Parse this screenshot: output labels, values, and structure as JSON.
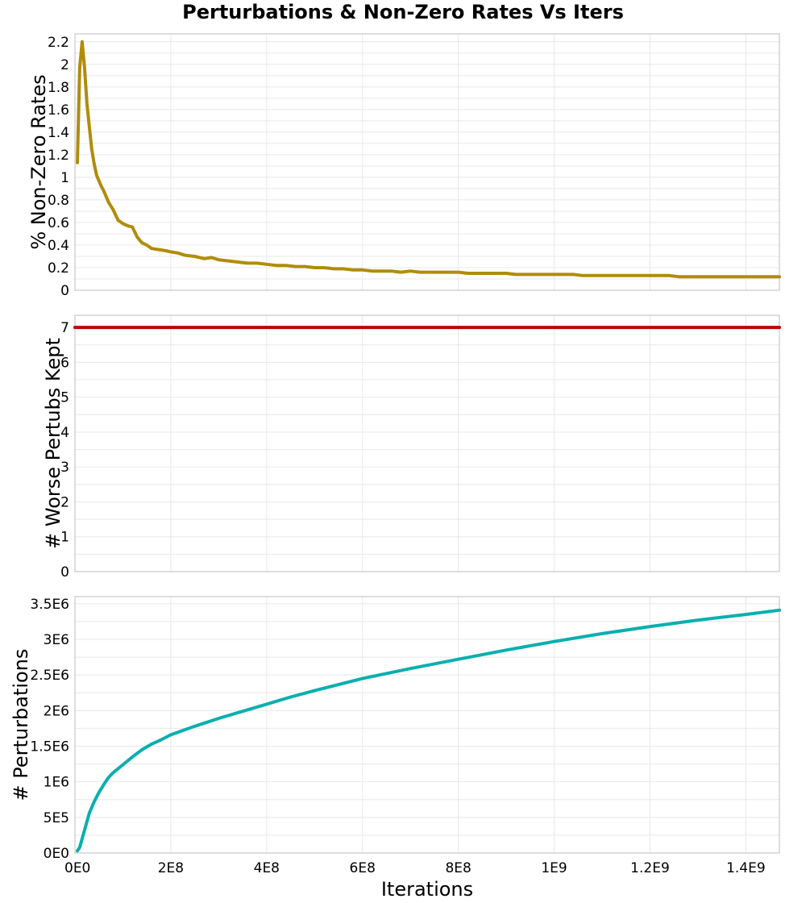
{
  "chart_data": {
    "type": "line",
    "title": "Perturbations & Non-Zero Rates Vs Iters",
    "xlabel": "Iterations",
    "xlim": [
      0,
      1470000000
    ],
    "xticks": [
      0,
      200000000,
      400000000,
      600000000,
      800000000,
      1000000000,
      1200000000,
      1400000000
    ],
    "xtick_labels": [
      "0E0",
      "2E8",
      "4E8",
      "6E8",
      "8E8",
      "1E9",
      "1.2E9",
      "1.4E9"
    ],
    "grid": true,
    "panels": [
      {
        "id": "nonzero",
        "ylabel": "% Non-Zero Rates",
        "ylim": [
          0,
          2.27
        ],
        "yticks": [
          0,
          0.2,
          0.4,
          0.6,
          0.8,
          1,
          1.2,
          1.4,
          1.6,
          1.8,
          2,
          2.2
        ],
        "ytick_labels": [
          "0",
          "0.2",
          "0.4",
          "0.6",
          "0.8",
          "1",
          "1.2",
          "1.4",
          "1.6",
          "1.8",
          "2",
          "2.2"
        ],
        "series": [
          {
            "name": "% Non-Zero Rates",
            "color": "#b08c0a",
            "x": [
              5000000,
              10000000,
              15000000,
              20000000,
              25000000,
              30000000,
              35000000,
              40000000,
              45000000,
              50000000,
              55000000,
              60000000,
              70000000,
              80000000,
              90000000,
              100000000,
              110000000,
              120000000,
              130000000,
              140000000,
              150000000,
              160000000,
              175000000,
              190000000,
              200000000,
              215000000,
              230000000,
              250000000,
              270000000,
              285000000,
              300000000,
              320000000,
              340000000,
              360000000,
              380000000,
              400000000,
              420000000,
              440000000,
              460000000,
              480000000,
              500000000,
              520000000,
              540000000,
              560000000,
              580000000,
              600000000,
              620000000,
              640000000,
              660000000,
              680000000,
              700000000,
              720000000,
              740000000,
              760000000,
              780000000,
              800000000,
              820000000,
              840000000,
              860000000,
              880000000,
              900000000,
              920000000,
              940000000,
              960000000,
              980000000,
              1000000000,
              1020000000,
              1040000000,
              1060000000,
              1080000000,
              1100000000,
              1120000000,
              1140000000,
              1160000000,
              1180000000,
              1200000000,
              1220000000,
              1240000000,
              1260000000,
              1280000000,
              1300000000,
              1320000000,
              1340000000,
              1360000000,
              1380000000,
              1400000000,
              1420000000,
              1440000000,
              1460000000,
              1470000000
            ],
            "values": [
              1.13,
              1.97,
              2.2,
              1.97,
              1.65,
              1.45,
              1.25,
              1.12,
              1.02,
              0.97,
              0.92,
              0.88,
              0.78,
              0.71,
              0.62,
              0.59,
              0.57,
              0.56,
              0.47,
              0.42,
              0.4,
              0.37,
              0.36,
              0.35,
              0.34,
              0.33,
              0.31,
              0.3,
              0.28,
              0.29,
              0.27,
              0.26,
              0.25,
              0.24,
              0.24,
              0.23,
              0.22,
              0.22,
              0.21,
              0.21,
              0.2,
              0.2,
              0.19,
              0.19,
              0.18,
              0.18,
              0.17,
              0.17,
              0.17,
              0.16,
              0.17,
              0.16,
              0.16,
              0.16,
              0.16,
              0.16,
              0.15,
              0.15,
              0.15,
              0.15,
              0.15,
              0.14,
              0.14,
              0.14,
              0.14,
              0.14,
              0.14,
              0.14,
              0.13,
              0.13,
              0.13,
              0.13,
              0.13,
              0.13,
              0.13,
              0.13,
              0.13,
              0.13,
              0.12,
              0.12,
              0.12,
              0.12,
              0.12,
              0.12,
              0.12,
              0.12,
              0.12,
              0.12,
              0.12,
              0.12
            ]
          }
        ]
      },
      {
        "id": "worse",
        "ylabel": "# Worse Pertubs Kept",
        "ylim": [
          0,
          7.35
        ],
        "yticks": [
          0,
          1,
          2,
          3,
          4,
          5,
          6,
          7
        ],
        "ytick_labels": [
          "0",
          "1",
          "2",
          "3",
          "4",
          "5",
          "6",
          "7"
        ],
        "series": [
          {
            "name": "# Worse Pertubs Kept",
            "color": "#c00000",
            "x": [
              0,
              1470000000
            ],
            "values": [
              7,
              7
            ]
          }
        ]
      },
      {
        "id": "perturbations",
        "ylabel": "# Perturbations",
        "ylim": [
          0,
          3600000
        ],
        "yticks": [
          0,
          500000,
          1000000,
          1500000,
          2000000,
          2500000,
          3000000,
          3500000
        ],
        "ytick_labels": [
          "0E0",
          "5E5",
          "1E6",
          "1.5E6",
          "2E6",
          "2.5E6",
          "3E6",
          "3.5E6"
        ],
        "series": [
          {
            "name": "# Perturbations",
            "color": "#0aafaf",
            "x": [
              5000000,
              10000000,
              20000000,
              30000000,
              40000000,
              50000000,
              60000000,
              70000000,
              80000000,
              100000000,
              120000000,
              140000000,
              160000000,
              180000000,
              200000000,
              250000000,
              300000000,
              350000000,
              400000000,
              450000000,
              500000000,
              600000000,
              700000000,
              800000000,
              900000000,
              1000000000,
              1100000000,
              1200000000,
              1300000000,
              1400000000,
              1470000000
            ],
            "values": [
              30000,
              80000,
              320000,
              560000,
              720000,
              850000,
              960000,
              1060000,
              1130000,
              1240000,
              1350000,
              1450000,
              1530000,
              1590000,
              1660000,
              1780000,
              1890000,
              1990000,
              2090000,
              2190000,
              2280000,
              2450000,
              2590000,
              2720000,
              2850000,
              2970000,
              3080000,
              3180000,
              3270000,
              3350000,
              3410000
            ]
          }
        ]
      }
    ]
  }
}
